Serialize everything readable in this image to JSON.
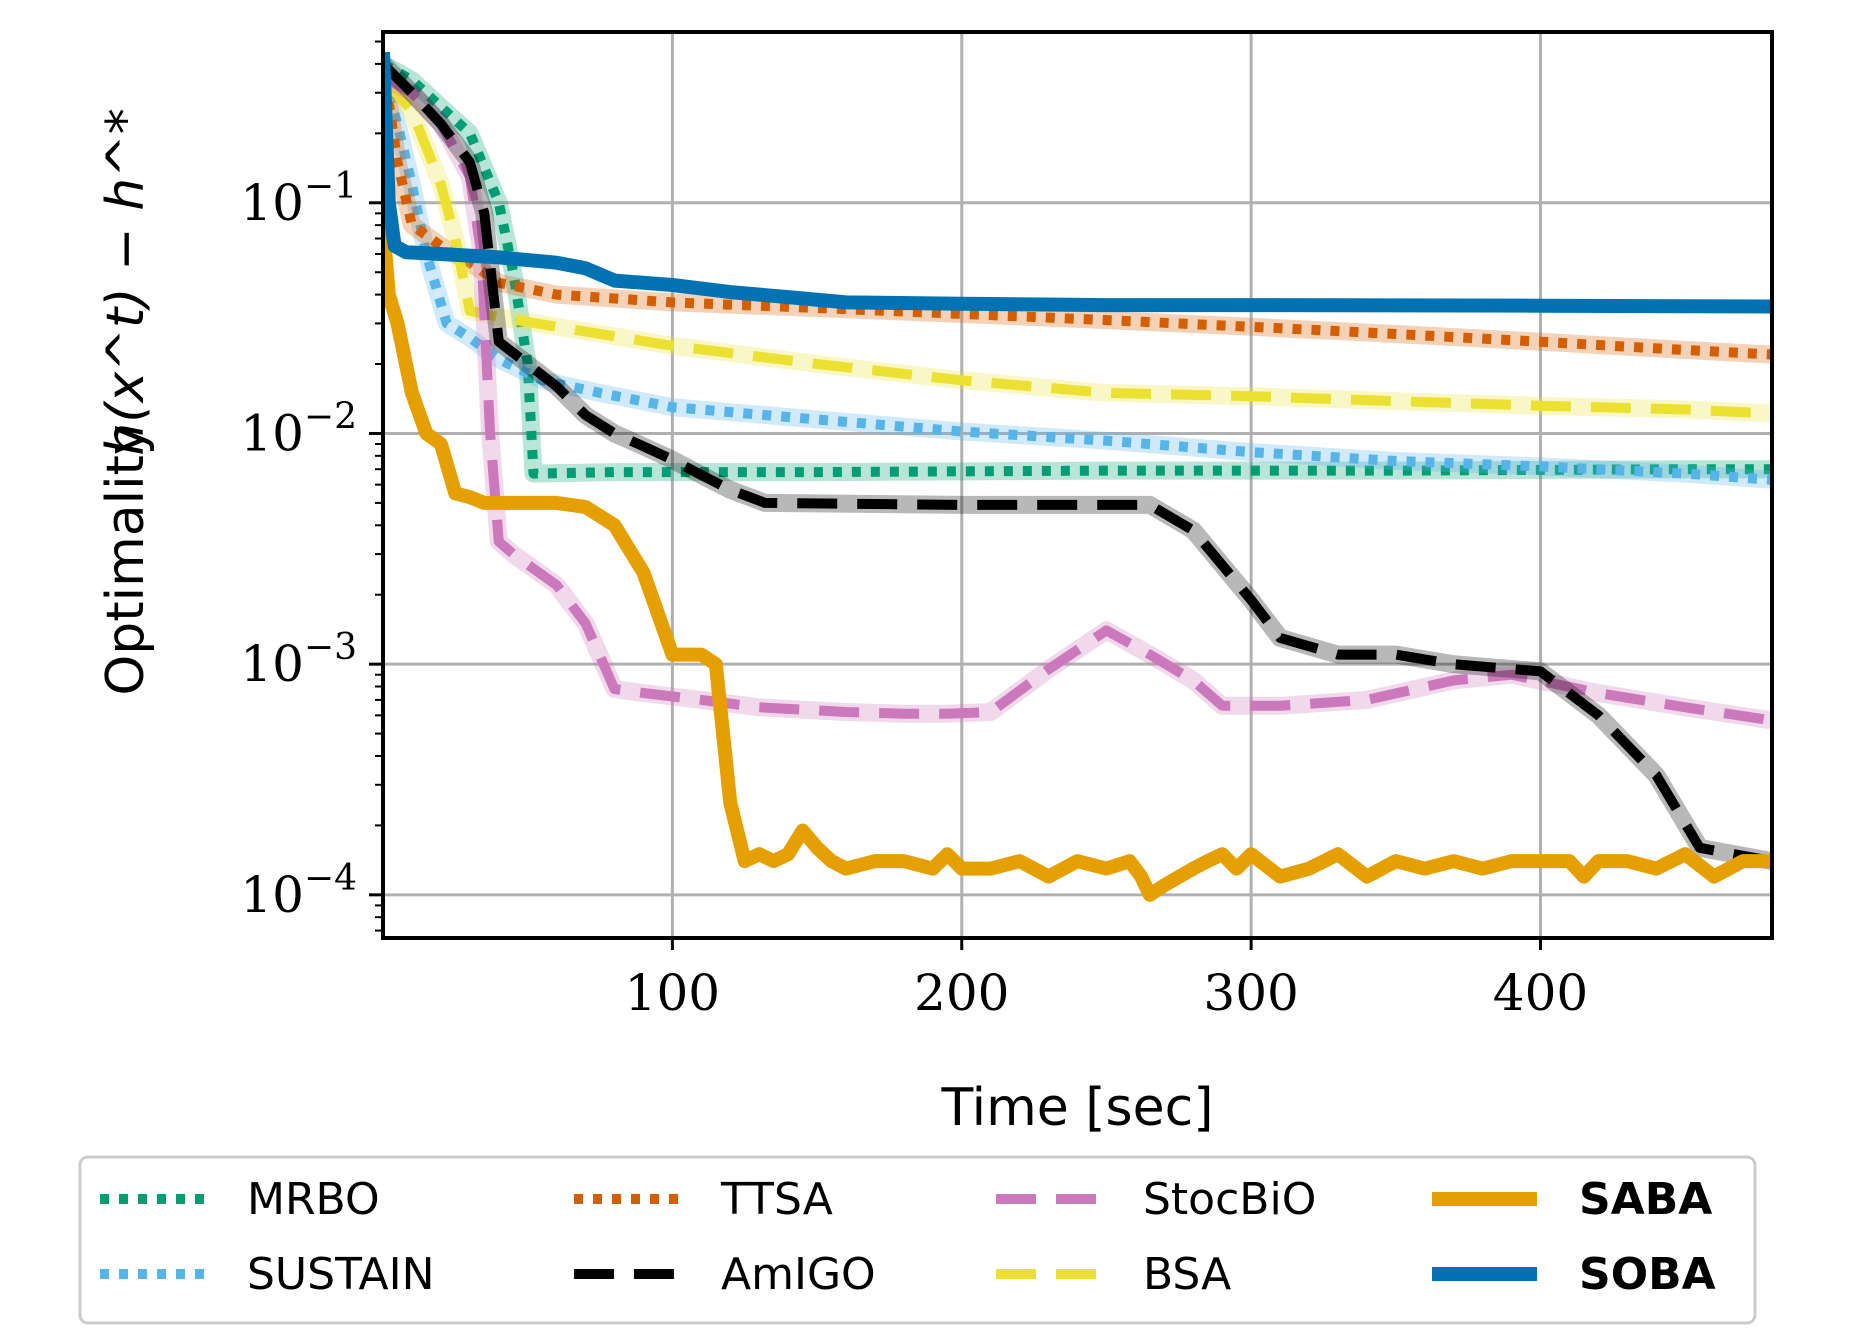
{
  "chart_data": {
    "type": "line",
    "xlabel": "Time [sec]",
    "ylabel_text": "Optimality",
    "ylabel_math": "h(x^t) − h^*",
    "yscale": "log",
    "xlim": [
      0,
      480
    ],
    "ylim": [
      6.5e-05,
      0.55
    ],
    "grid": true,
    "legend_position": "bottom",
    "x_ticks": [
      {
        "value": 100,
        "label": "100"
      },
      {
        "value": 200,
        "label": "200"
      },
      {
        "value": 300,
        "label": "300"
      },
      {
        "value": 400,
        "label": "400"
      }
    ],
    "y_ticks": [
      {
        "value": 0.1,
        "base": "10",
        "exp": "−1"
      },
      {
        "value": 0.01,
        "base": "10",
        "exp": "−2"
      },
      {
        "value": 0.001,
        "base": "10",
        "exp": "−3"
      },
      {
        "value": 0.0001,
        "base": "10",
        "exp": "−4"
      }
    ],
    "series": [
      {
        "name": "MRBO",
        "color": "#029e73",
        "style": "dotted",
        "bold": false,
        "x": [
          0,
          10,
          20,
          30,
          40,
          45,
          50,
          52,
          80,
          150,
          250,
          350,
          450,
          480
        ],
        "y": [
          0.4,
          0.34,
          0.26,
          0.2,
          0.1,
          0.05,
          0.02,
          0.0067,
          0.0068,
          0.0068,
          0.0069,
          0.0069,
          0.007,
          0.007
        ]
      },
      {
        "name": "SUSTAIN",
        "color": "#56b4e9",
        "style": "dotted",
        "bold": false,
        "x": [
          0,
          5,
          10,
          15,
          22,
          30,
          40,
          55,
          75,
          100,
          150,
          200,
          250,
          300,
          350,
          400,
          450,
          480
        ],
        "y": [
          0.35,
          0.22,
          0.12,
          0.06,
          0.03,
          0.026,
          0.021,
          0.017,
          0.015,
          0.013,
          0.0115,
          0.0102,
          0.0093,
          0.0083,
          0.0076,
          0.0072,
          0.0067,
          0.0063
        ]
      },
      {
        "name": "TTSA",
        "color": "#d55e00",
        "style": "dotted",
        "bold": false,
        "x": [
          0,
          5,
          10,
          20,
          30,
          40,
          60,
          100,
          150,
          200,
          250,
          300,
          350,
          400,
          450,
          480
        ],
        "y": [
          0.4,
          0.15,
          0.08,
          0.065,
          0.055,
          0.045,
          0.04,
          0.037,
          0.035,
          0.033,
          0.031,
          0.029,
          0.027,
          0.025,
          0.023,
          0.022
        ]
      },
      {
        "name": "AmIGO",
        "color": "#000000",
        "style": "dashed",
        "bold": false,
        "x": [
          0,
          10,
          20,
          30,
          35,
          40,
          50,
          60,
          70,
          80,
          90,
          100,
          110,
          120,
          132,
          200,
          265,
          280,
          300,
          310,
          330,
          350,
          370,
          400,
          420,
          440,
          455,
          480
        ],
        "y": [
          0.4,
          0.3,
          0.22,
          0.15,
          0.09,
          0.025,
          0.02,
          0.016,
          0.012,
          0.01,
          0.0088,
          0.0077,
          0.0066,
          0.0057,
          0.005,
          0.0049,
          0.0049,
          0.0038,
          0.0019,
          0.0013,
          0.0011,
          0.0011,
          0.001,
          0.00093,
          0.0006,
          0.00033,
          0.00016,
          0.00014
        ]
      },
      {
        "name": "StocBiO",
        "color": "#cc78bc",
        "style": "dashed",
        "bold": false,
        "x": [
          0,
          10,
          20,
          30,
          34,
          37,
          40,
          45,
          60,
          70,
          80,
          90,
          110,
          130,
          160,
          180,
          195,
          210,
          230,
          250,
          265,
          280,
          290,
          310,
          340,
          370,
          390,
          420,
          450,
          480
        ],
        "y": [
          0.35,
          0.3,
          0.22,
          0.13,
          0.06,
          0.01,
          0.0034,
          0.003,
          0.0022,
          0.0015,
          0.00078,
          0.00075,
          0.0007,
          0.00065,
          0.00062,
          0.00061,
          0.00061,
          0.00062,
          0.00095,
          0.0014,
          0.0011,
          0.00085,
          0.00066,
          0.00066,
          0.0007,
          0.00085,
          0.0009,
          0.00075,
          0.00065,
          0.00057
        ]
      },
      {
        "name": "BSA",
        "color": "#ece133",
        "style": "dashed",
        "bold": false,
        "x": [
          0,
          10,
          20,
          25,
          30,
          40,
          60,
          100,
          150,
          200,
          250,
          300,
          350,
          400,
          450,
          480
        ],
        "y": [
          0.35,
          0.25,
          0.12,
          0.07,
          0.034,
          0.032,
          0.029,
          0.024,
          0.02,
          0.017,
          0.015,
          0.0145,
          0.0138,
          0.0132,
          0.0127,
          0.0122
        ]
      },
      {
        "name": "SABA",
        "color": "#e69f00",
        "style": "solid",
        "bold": true,
        "x": [
          0,
          2,
          5,
          10,
          15,
          20,
          25,
          30,
          35,
          40,
          50,
          60,
          70,
          80,
          90,
          100,
          110,
          115,
          120,
          125,
          130,
          135,
          140,
          145,
          150,
          155,
          160,
          170,
          180,
          190,
          195,
          200,
          210,
          220,
          230,
          240,
          250,
          258,
          262,
          265,
          270,
          280,
          285,
          290,
          295,
          300,
          310,
          320,
          330,
          340,
          350,
          360,
          370,
          380,
          390,
          400,
          410,
          415,
          420,
          430,
          440,
          450,
          460,
          470,
          480
        ],
        "y": [
          0.08,
          0.04,
          0.03,
          0.015,
          0.01,
          0.009,
          0.0055,
          0.0053,
          0.005,
          0.005,
          0.005,
          0.005,
          0.0048,
          0.004,
          0.0025,
          0.0011,
          0.0011,
          0.001,
          0.00025,
          0.00014,
          0.00015,
          0.00014,
          0.00015,
          0.00019,
          0.00016,
          0.00014,
          0.00013,
          0.00014,
          0.00014,
          0.00013,
          0.00015,
          0.00013,
          0.00013,
          0.00014,
          0.00012,
          0.00014,
          0.00013,
          0.00014,
          0.00012,
          0.0001,
          0.00011,
          0.00013,
          0.00014,
          0.00015,
          0.00013,
          0.00015,
          0.00012,
          0.00013,
          0.00015,
          0.00012,
          0.00014,
          0.00013,
          0.00014,
          0.00013,
          0.00014,
          0.00014,
          0.00014,
          0.00012,
          0.00014,
          0.00014,
          0.00013,
          0.00015,
          0.00012,
          0.00014,
          0.00014
        ]
      },
      {
        "name": "SOBA",
        "color": "#0173b2",
        "style": "solid",
        "bold": true,
        "x": [
          0,
          2,
          4,
          8,
          20,
          40,
          60,
          70,
          80,
          100,
          120,
          140,
          160,
          200,
          250,
          300,
          400,
          480
        ],
        "y": [
          0.45,
          0.1,
          0.065,
          0.061,
          0.06,
          0.058,
          0.055,
          0.052,
          0.046,
          0.044,
          0.041,
          0.039,
          0.037,
          0.0365,
          0.036,
          0.036,
          0.0358,
          0.0355
        ]
      }
    ]
  }
}
